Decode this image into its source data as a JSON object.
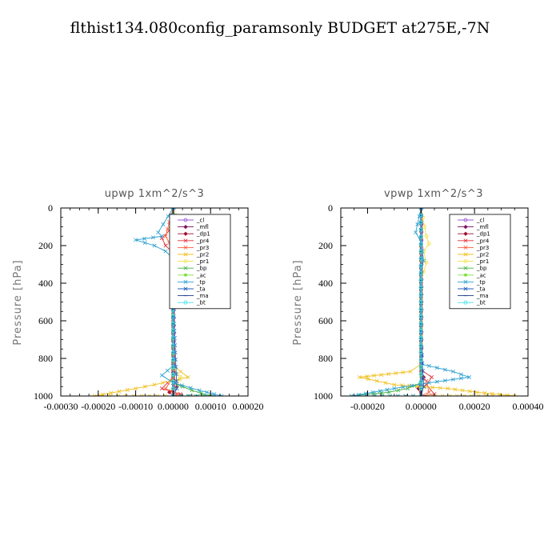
{
  "figure_title": "flthist134.080config_paramsonly  BUDGET at275E,-7N",
  "legend_entries": [
    {
      "label": "_cl",
      "color": "#9b59d0",
      "marker": "circle"
    },
    {
      "label": "_mfl",
      "color": "#7a0e5a",
      "marker": "diamond"
    },
    {
      "label": "_dp1",
      "color": "#9b1030",
      "marker": "diamond"
    },
    {
      "label": "_pr4",
      "color": "#e0303a",
      "marker": "x"
    },
    {
      "label": "_pr3",
      "color": "#ff6040",
      "marker": "x"
    },
    {
      "label": "_pr2",
      "color": "#f0c020",
      "marker": "x"
    },
    {
      "label": "_pr1",
      "color": "#f0e040",
      "marker": "circle"
    },
    {
      "label": "_bp",
      "color": "#40b040",
      "marker": "x"
    },
    {
      "label": "_ac",
      "color": "#80e040",
      "marker": "dot"
    },
    {
      "label": "_tp",
      "color": "#2a9fd0",
      "marker": "x"
    },
    {
      "label": "_ta",
      "color": "#2060c0",
      "marker": "x"
    },
    {
      "label": "_ma",
      "color": "#1a3a8a",
      "marker": "dash"
    },
    {
      "label": "_bt",
      "color": "#40e0f0",
      "marker": "circle"
    }
  ],
  "chart_data": [
    {
      "type": "line",
      "title": "upwp   1xm^2/s^3",
      "ylabel": "Pressure [hPa]",
      "ylim": [
        1000,
        0
      ],
      "xlim": [
        -0.0003,
        0.0002
      ],
      "yticks": [
        0,
        200,
        400,
        600,
        800,
        1000
      ],
      "xticks": [
        -0.0003,
        -0.0002,
        -0.0001,
        0.0,
        0.0001,
        0.0002
      ],
      "xtick_labels": [
        "-0.00030",
        "-0.00020",
        "-0.00010",
        "0.00000",
        "0.00010",
        "0.00020"
      ],
      "legend_position": "top-right",
      "series": [
        {
          "name": "_cl",
          "x": [
            2e-06,
            2e-06,
            2e-06,
            2e-06,
            2e-06
          ],
          "y": [
            0,
            250,
            500,
            750,
            1000
          ]
        },
        {
          "name": "_mfl",
          "x": [
            0.0,
            0.0,
            0.0,
            0.0,
            0.0
          ],
          "y": [
            0,
            250,
            500,
            750,
            1000
          ]
        },
        {
          "name": "_dp1",
          "x": [
            0.0,
            0.0,
            0.0,
            1e-05,
            -1e-05,
            0.0
          ],
          "y": [
            0,
            500,
            900,
            950,
            980,
            1000
          ]
        },
        {
          "name": "_pr4",
          "x": [
            0.0,
            -1e-05,
            -3e-05,
            -2e-05,
            0.0,
            0.0,
            -3e-05,
            2e-05,
            0.0
          ],
          "y": [
            0,
            120,
            160,
            200,
            240,
            900,
            960,
            990,
            1000
          ]
        },
        {
          "name": "_pr3",
          "x": [
            0.0,
            -2e-05,
            0.0,
            0.0,
            -2e-05,
            1e-05,
            0.0
          ],
          "y": [
            0,
            150,
            220,
            900,
            960,
            990,
            1000
          ]
        },
        {
          "name": "_pr2",
          "x": [
            0.0,
            2e-05,
            3e-05,
            1e-05,
            0.0,
            0.0,
            4e-05,
            -5e-05,
            -0.0001,
            -0.00021,
            0.0
          ],
          "y": [
            0,
            150,
            190,
            230,
            270,
            840,
            900,
            940,
            960,
            1000,
            1000
          ]
        },
        {
          "name": "_pr1",
          "x": [
            0.0,
            1e-05,
            2e-05,
            0.0,
            0.0,
            2e-05,
            0.0
          ],
          "y": [
            0,
            160,
            200,
            250,
            850,
            900,
            1000
          ]
        },
        {
          "name": "_bp",
          "x": [
            0.0,
            1e-05,
            0.0,
            0.0,
            5e-05,
            0.0001,
            0.0
          ],
          "y": [
            0,
            170,
            230,
            930,
            970,
            1000,
            1000
          ]
        },
        {
          "name": "_ac",
          "x": [
            0.0,
            2e-05,
            1e-05,
            0.0,
            0.0
          ],
          "y": [
            0,
            180,
            220,
            260,
            1000
          ]
        },
        {
          "name": "_tp",
          "x": [
            0.0,
            -4e-05,
            -3e-05,
            -0.0001,
            -5e-05,
            -2e-05,
            0.0,
            0.0,
            -3e-05,
            0.0,
            7e-05,
            0.00013,
            0.0
          ],
          "y": [
            0,
            130,
            150,
            170,
            200,
            230,
            270,
            840,
            890,
            930,
            970,
            1000,
            1000
          ]
        },
        {
          "name": "_ta",
          "x": [
            0.0,
            0.0,
            1e-05,
            0.0
          ],
          "y": [
            0,
            500,
            960,
            1000
          ]
        },
        {
          "name": "_ma",
          "x": [
            0.0,
            0.0
          ],
          "y": [
            0,
            1000
          ]
        },
        {
          "name": "_bt",
          "x": [
            0.0,
            0.0
          ],
          "y": [
            0,
            1000
          ]
        }
      ]
    },
    {
      "type": "line",
      "title": "vpwp   1xm^2/s^3",
      "ylabel": "Pressure [hPa]",
      "ylim": [
        1000,
        0
      ],
      "xlim": [
        -0.0003,
        0.0004
      ],
      "yticks": [
        0,
        200,
        400,
        600,
        800,
        1000
      ],
      "xticks": [
        -0.0002,
        0.0,
        0.0002,
        0.0004
      ],
      "xtick_labels": [
        "-0.00020",
        "0.00000",
        "0.00020",
        "0.00040"
      ],
      "legend_position": "top-right",
      "series": [
        {
          "name": "_cl",
          "x": [
            2e-06,
            2e-06,
            2e-06,
            2e-06
          ],
          "y": [
            0,
            300,
            700,
            1000
          ]
        },
        {
          "name": "_mfl",
          "x": [
            0.0,
            0.0,
            0.0
          ],
          "y": [
            0,
            500,
            1000
          ]
        },
        {
          "name": "_dp1",
          "x": [
            0.0,
            0.0,
            1e-05,
            -1e-05,
            0.0
          ],
          "y": [
            0,
            850,
            900,
            960,
            1000
          ]
        },
        {
          "name": "_pr4",
          "x": [
            0.0,
            0.0,
            4e-05,
            2e-05,
            5e-05,
            0.0
          ],
          "y": [
            0,
            860,
            900,
            940,
            990,
            1000
          ]
        },
        {
          "name": "_pr3",
          "x": [
            0.0,
            0.0,
            2e-05,
            3e-05,
            0.0
          ],
          "y": [
            0,
            880,
            920,
            980,
            1000
          ]
        },
        {
          "name": "_pr2",
          "x": [
            0.0,
            0.0,
            -4e-05,
            -0.00023,
            -0.0001,
            0.0001,
            0.00021,
            0.00035,
            0.0
          ],
          "y": [
            0,
            830,
            870,
            900,
            940,
            960,
            980,
            1000,
            1000
          ]
        },
        {
          "name": "_pr1",
          "x": [
            0.0,
            2e-05,
            3e-05,
            1e-05,
            2e-05,
            1e-05,
            0.0,
            0.0
          ],
          "y": [
            0,
            150,
            190,
            230,
            290,
            340,
            380,
            1000
          ]
        },
        {
          "name": "_bp",
          "x": [
            0.0,
            0.0,
            -5e-05,
            -0.00012,
            -0.00026,
            0.0
          ],
          "y": [
            0,
            930,
            960,
            980,
            1000,
            1000
          ]
        },
        {
          "name": "_ac",
          "x": [
            0.0,
            0.0
          ],
          "y": [
            0,
            1000
          ]
        },
        {
          "name": "_tp",
          "x": [
            0.0,
            -2e-05,
            0.0,
            1e-05,
            0.0,
            0.0,
            0.00012,
            0.00018,
            3e-05,
            -0.0001,
            -0.00026,
            0.0
          ],
          "y": [
            0,
            130,
            180,
            280,
            330,
            830,
            870,
            900,
            930,
            960,
            1000,
            1000
          ]
        },
        {
          "name": "_ta",
          "x": [
            0.0,
            0.0,
            1e-05,
            0.0
          ],
          "y": [
            0,
            700,
            950,
            1000
          ]
        },
        {
          "name": "_ma",
          "x": [
            0.0,
            0.0
          ],
          "y": [
            0,
            1000
          ]
        },
        {
          "name": "_bt",
          "x": [
            0.0,
            0.0
          ],
          "y": [
            0,
            1000
          ]
        }
      ]
    }
  ]
}
